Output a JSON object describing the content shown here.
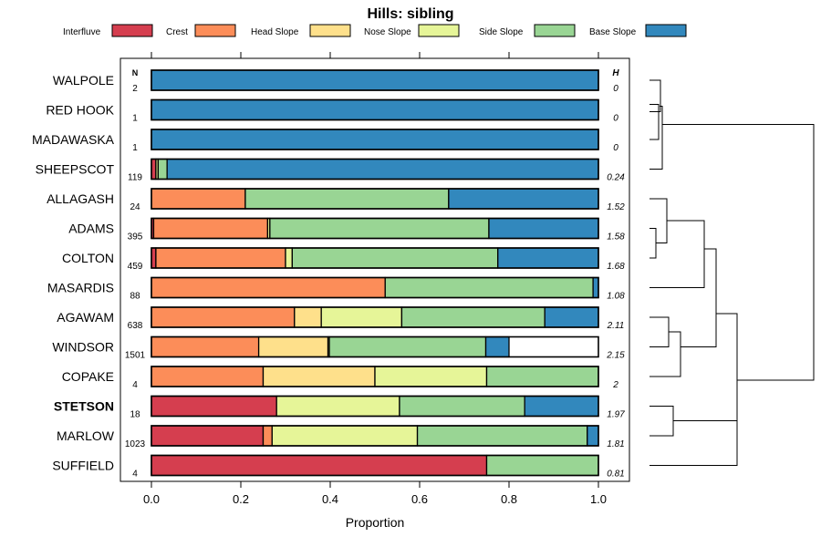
{
  "chart_data": {
    "type": "bar",
    "orientation": "horizontal-stacked",
    "title": "Hills: sibling",
    "xlabel": "Proportion",
    "ylabel": "",
    "xlim": [
      0,
      1
    ],
    "x_ticks": [
      "0.0",
      "0.2",
      "0.4",
      "0.6",
      "0.8",
      "1.0"
    ],
    "tick_values": [
      0,
      0.2,
      0.4,
      0.6,
      0.8,
      1.0
    ],
    "n_header": "N",
    "h_header": "H",
    "legend_position": "top",
    "highlight_category": "STETSON",
    "legend": [
      {
        "name": "Interfluve",
        "color": "#D53E4F"
      },
      {
        "name": "Crest",
        "color": "#FC8D59"
      },
      {
        "name": "Head Slope",
        "color": "#FEE08B"
      },
      {
        "name": "Nose Slope",
        "color": "#E6F598"
      },
      {
        "name": "Side Slope",
        "color": "#99D594"
      },
      {
        "name": "Base Slope",
        "color": "#3288BD"
      }
    ],
    "categories": [
      "WALPOLE",
      "RED HOOK",
      "MADAWASKA",
      "SHEEPSCOT",
      "ALLAGASH",
      "ADAMS",
      "COLTON",
      "MASARDIS",
      "AGAWAM",
      "WINDSOR",
      "COPAKE",
      "STETSON",
      "MARLOW",
      "SUFFIELD"
    ],
    "n": [
      "2",
      "1",
      "1",
      "119",
      "24",
      "395",
      "459",
      "88",
      "638",
      "1501",
      "4",
      "18",
      "1023",
      "4"
    ],
    "h": [
      "0",
      "0",
      "0",
      "0.24",
      "1.52",
      "1.58",
      "1.68",
      "1.08",
      "2.11",
      "2.15",
      "2",
      "1.97",
      "1.81",
      "0.81"
    ],
    "series": [
      {
        "name": "Interfluve",
        "values": [
          0,
          0,
          0,
          0.01,
          0,
          0.005,
          0.01,
          0,
          0,
          0,
          0,
          0.28,
          0.25,
          0.75
        ]
      },
      {
        "name": "Crest",
        "values": [
          0,
          0,
          0,
          0,
          0.21,
          0.255,
          0.29,
          0.523,
          0.32,
          0.24,
          0.25,
          0,
          0.02,
          0
        ]
      },
      {
        "name": "Head Slope",
        "values": [
          0,
          0,
          0,
          0,
          0,
          0,
          0,
          0,
          0.06,
          0.155,
          0.25,
          0,
          0,
          0
        ]
      },
      {
        "name": "Nose Slope",
        "values": [
          0,
          0,
          0,
          0.005,
          0,
          0.005,
          0.015,
          0,
          0.18,
          0.003,
          0.25,
          0.275,
          0.325,
          0
        ]
      },
      {
        "name": "Side Slope",
        "values": [
          0,
          0,
          0,
          0.02,
          0.455,
          0.49,
          0.46,
          0.465,
          0.32,
          0.35,
          0.25,
          0.28,
          0.38,
          0.25
        ]
      },
      {
        "name": "Base Slope",
        "values": [
          1,
          1,
          1,
          0.965,
          0.335,
          0.245,
          0.225,
          0.012,
          0.12,
          0.052,
          0,
          0.165,
          0.025,
          0
        ]
      }
    ]
  }
}
